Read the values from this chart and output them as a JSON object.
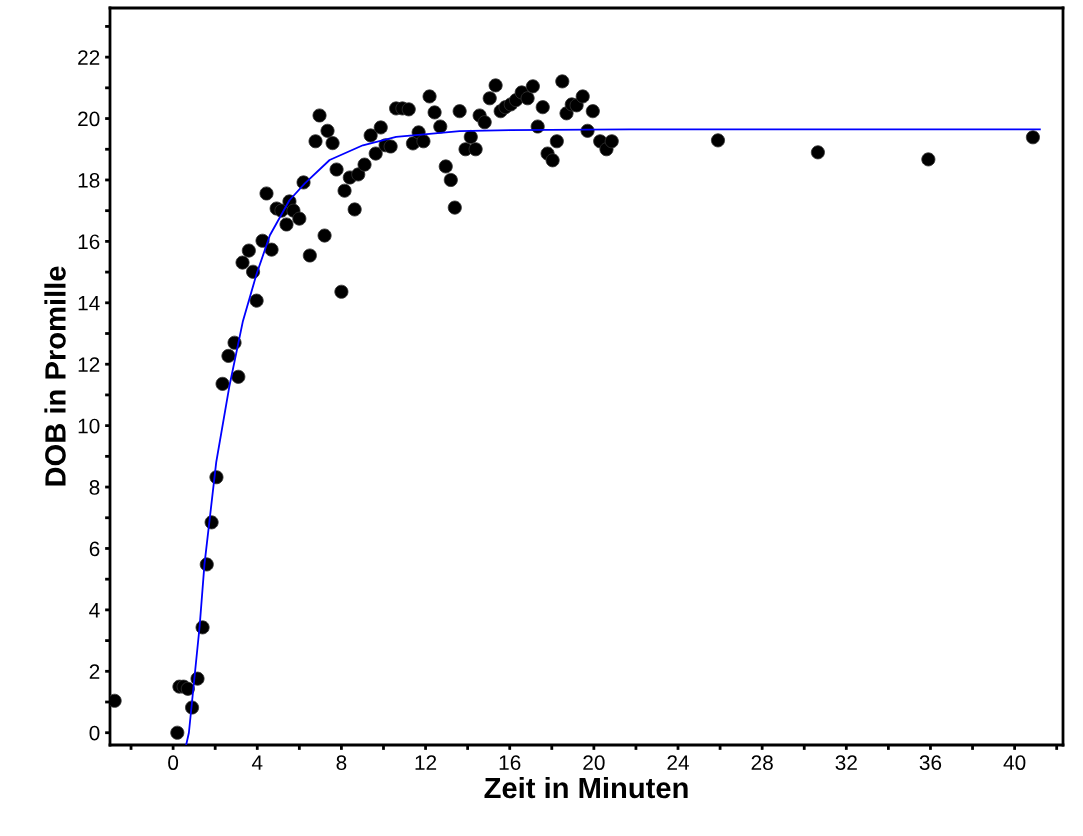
{
  "chart_data": {
    "type": "scatter",
    "xlabel": "Zeit in Minuten",
    "ylabel": "DOB in Promille",
    "xlim": [
      -3.0,
      42.3
    ],
    "ylim": [
      -0.4,
      23.6
    ],
    "xticks": [
      {
        "value": -2,
        "label": null
      },
      0,
      {
        "value": 2,
        "label": null
      },
      4,
      {
        "value": 6,
        "label": null
      },
      8,
      {
        "value": 10,
        "label": null
      },
      12,
      {
        "value": 14,
        "label": null
      },
      16,
      {
        "value": 18,
        "label": null
      },
      20,
      {
        "value": 22,
        "label": null
      },
      24,
      {
        "value": 26,
        "label": null
      },
      28,
      {
        "value": 30,
        "label": null
      },
      32,
      {
        "value": 34,
        "label": null
      },
      36,
      {
        "value": 38,
        "label": null
      },
      40,
      {
        "value": 42,
        "label": null
      }
    ],
    "yticks": [
      0,
      {
        "value": 1,
        "label": null
      },
      2,
      {
        "value": 3,
        "label": null
      },
      4,
      {
        "value": 5,
        "label": null
      },
      6,
      {
        "value": 7,
        "label": null
      },
      8,
      {
        "value": 9,
        "label": null
      },
      10,
      {
        "value": 11,
        "label": null
      },
      12,
      {
        "value": 13,
        "label": null
      },
      14,
      {
        "value": 15,
        "label": null
      },
      16,
      {
        "value": 17,
        "label": null
      },
      18,
      {
        "value": 19,
        "label": null
      },
      20,
      {
        "value": 21,
        "label": null
      },
      22,
      {
        "value": 23,
        "label": null
      }
    ],
    "grid": false,
    "series": [
      {
        "color": "#000000",
        "marker": "circle",
        "x": [
          -2.78,
          0.2,
          0.3,
          0.5,
          0.7,
          0.9,
          1.16,
          1.4,
          1.6,
          1.83,
          2.06,
          2.35,
          2.63,
          2.92,
          3.1,
          3.3,
          3.6,
          3.8,
          3.97,
          4.25,
          4.44,
          4.68,
          4.92,
          5.15,
          5.39,
          5.53,
          5.72,
          6.0,
          6.2,
          6.5,
          6.77,
          6.96,
          7.2,
          7.34,
          7.58,
          7.77,
          8.0,
          8.15,
          8.4,
          8.63,
          8.8,
          9.1,
          9.39,
          9.63,
          9.87,
          10.1,
          10.34,
          10.6,
          10.9,
          11.2,
          11.4,
          11.67,
          11.9,
          12.19,
          12.43,
          12.7,
          12.96,
          13.2,
          13.39,
          13.62,
          13.9,
          14.15,
          14.38,
          14.57,
          14.81,
          15.05,
          15.33,
          15.57,
          15.8,
          16.05,
          16.3,
          16.57,
          16.85,
          17.1,
          17.33,
          17.57,
          17.8,
          18.04,
          18.24,
          18.5,
          18.7,
          18.95,
          19.18,
          19.47,
          19.7,
          19.95,
          20.3,
          20.6,
          20.85,
          25.9,
          30.65,
          35.9,
          40.87
        ],
        "values": [
          1.04,
          0,
          1.5,
          1.5,
          1.43,
          0.82,
          1.76,
          3.43,
          5.48,
          6.85,
          8.32,
          11.36,
          12.27,
          12.7,
          11.59,
          15.31,
          15.7,
          15.01,
          14.07,
          16.02,
          17.56,
          15.73,
          17.07,
          17.0,
          16.55,
          17.3,
          17.0,
          16.74,
          17.92,
          15.54,
          19.26,
          20.1,
          16.19,
          19.6,
          19.2,
          18.34,
          14.36,
          17.65,
          18.08,
          17.04,
          18.18,
          18.5,
          19.45,
          18.86,
          19.71,
          19.13,
          19.09,
          20.33,
          20.33,
          20.3,
          19.19,
          19.55,
          19.26,
          20.72,
          20.2,
          19.74,
          18.44,
          18.0,
          17.1,
          20.24,
          19.0,
          19.4,
          19.0,
          20.1,
          19.88,
          20.66,
          21.08,
          20.24,
          20.37,
          20.46,
          20.6,
          20.85,
          20.66,
          21.05,
          19.74,
          20.37,
          18.86,
          18.64,
          19.26,
          21.21,
          20.17,
          20.46,
          20.43,
          20.72,
          19.6,
          20.24,
          19.26,
          19.0,
          19.26,
          19.29,
          18.9,
          18.67,
          19.39
        ]
      },
      {
        "type": "line",
        "color": "#0000ff",
        "marker": "none",
        "line_style": "solid",
        "x": [
          0.62,
          0.75,
          1.26,
          1.49,
          2.05,
          2.68,
          3.31,
          3.95,
          4.6,
          5.53,
          6.25,
          7.44,
          9.02,
          10.6,
          12.19,
          13.62,
          16.0,
          21.7,
          30.0,
          41.2
        ],
        "values": [
          -0.4,
          0,
          3.46,
          5.48,
          8.81,
          11.3,
          13.38,
          14.9,
          16.2,
          17.34,
          17.88,
          18.65,
          19.13,
          19.4,
          19.5,
          19.59,
          19.62,
          19.65,
          19.65,
          19.65
        ]
      }
    ]
  }
}
